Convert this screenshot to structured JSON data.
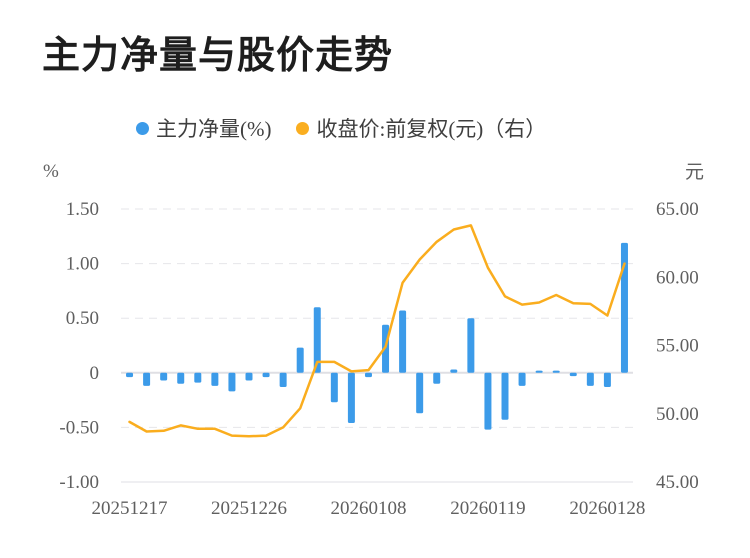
{
  "title": "主力净量与股价走势",
  "legend": [
    {
      "label": "主力净量(%)",
      "color": "#3C9BE9"
    },
    {
      "label": "收盘价:前复权(元)（右）",
      "color": "#FAAE20"
    }
  ],
  "colors": {
    "bar": "#3C9BE9",
    "line": "#FAAD1E",
    "grid_dashed": "#e6e6ea",
    "grid_solid": "#dfdfe4",
    "axis_text": "#5f5f5f",
    "title_text": "#1e1e1e",
    "legend_text": "#3f3f3f",
    "background": "#ffffff"
  },
  "chart_data": {
    "type": "bar+line",
    "x_count": 30,
    "x_tick_labels": [
      {
        "index": 0,
        "label": "20251217"
      },
      {
        "index": 7,
        "label": "20251226"
      },
      {
        "index": 14,
        "label": "20260108"
      },
      {
        "index": 21,
        "label": "20260119"
      },
      {
        "index": 28,
        "label": "20260128"
      }
    ],
    "left_axis": {
      "unit": "%",
      "min": -1.0,
      "max": 1.5,
      "interval": 0.5,
      "tick_values": [
        1.5,
        1.0,
        0.5,
        0,
        -0.5,
        -1.0
      ],
      "tick_labels": [
        "1.50",
        "1.00",
        "0.50",
        "0",
        "-0.50",
        "-1.00"
      ]
    },
    "right_axis": {
      "unit": "元",
      "min": 45,
      "max": 65,
      "interval": 5,
      "tick_values": [
        65,
        60,
        55,
        50,
        45
      ],
      "tick_labels": [
        "65.00",
        "60.00",
        "55.00",
        "50.00",
        "45.00"
      ]
    },
    "grid": true,
    "legend_position": "top",
    "series": [
      {
        "name": "主力净量(%)",
        "type": "bar",
        "yaxis": "left",
        "color": "#3C9BE9",
        "values": [
          -0.04,
          -0.12,
          -0.07,
          -0.1,
          -0.09,
          -0.12,
          -0.17,
          -0.07,
          -0.04,
          -0.13,
          0.23,
          0.6,
          -0.27,
          -0.46,
          -0.04,
          0.44,
          0.57,
          -0.37,
          -0.1,
          0.03,
          0.5,
          -0.52,
          -0.43,
          -0.12,
          0.02,
          0.02,
          -0.03,
          -0.12,
          -0.13,
          1.19
        ]
      },
      {
        "name": "收盘价:前复权(元)（右）",
        "type": "line",
        "yaxis": "right",
        "color": "#FAAD1E",
        "values": [
          49.4,
          48.7,
          48.75,
          49.15,
          48.9,
          48.9,
          48.4,
          48.35,
          48.4,
          49.0,
          50.4,
          53.8,
          53.8,
          53.1,
          53.2,
          54.9,
          59.6,
          61.3,
          62.6,
          63.5,
          63.8,
          60.7,
          58.6,
          58.0,
          58.15,
          58.7,
          58.1,
          58.05,
          57.2,
          61.0
        ]
      }
    ]
  }
}
